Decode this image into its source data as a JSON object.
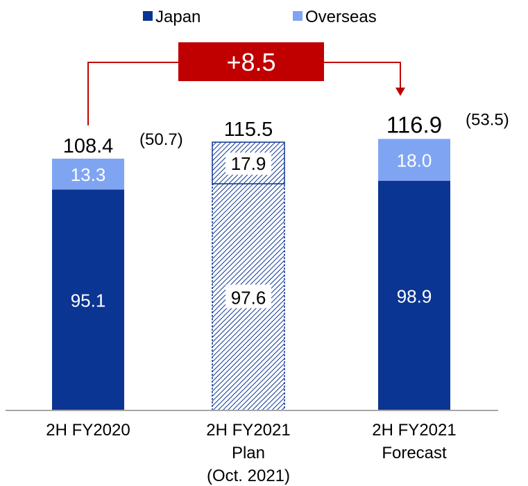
{
  "chart_data": {
    "type": "bar",
    "stacked": true,
    "categories": [
      [
        "2H FY2020"
      ],
      [
        "2H FY2021",
        "Plan",
        "(Oct. 2021)"
      ],
      [
        "2H FY2021",
        "Forecast"
      ]
    ],
    "series": [
      {
        "name": "Japan",
        "values": [
          95.1,
          97.6,
          98.9
        ],
        "color": "#0B3592"
      },
      {
        "name": "Overseas",
        "values": [
          13.3,
          17.9,
          18.0
        ],
        "color": "#7FA5F2"
      }
    ],
    "hatched": [
      false,
      true,
      false
    ],
    "totals": [
      "108.4",
      "115.5",
      "116.9"
    ],
    "segment_labels": {
      "Japan": [
        "95.1",
        "97.6",
        "98.9"
      ],
      "Overseas": [
        "13.3",
        "17.9",
        "18.0"
      ]
    },
    "annotations": [
      "(50.7)",
      "",
      "(53.5)"
    ],
    "change": {
      "label": "+8.5",
      "from": 0,
      "to": 2,
      "color": "#C00000"
    },
    "legend": {
      "position": "top",
      "entries": [
        "Japan",
        "Overseas"
      ]
    },
    "xlabel": "",
    "ylabel": "",
    "ylim": [
      0,
      125
    ],
    "grid": false
  }
}
